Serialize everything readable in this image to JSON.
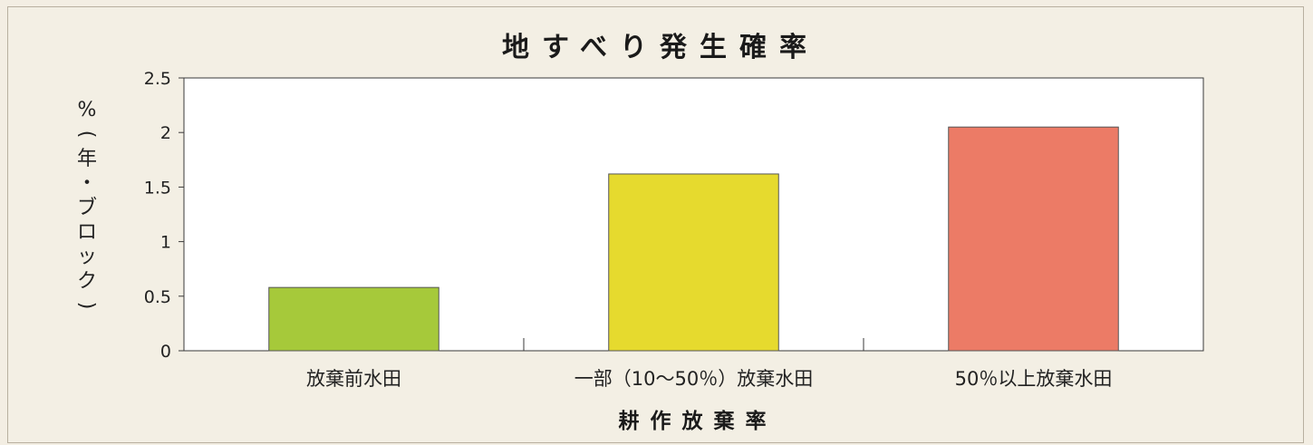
{
  "chart_data": {
    "type": "bar",
    "title": "地すべり発生確率",
    "xlabel": "耕作放棄率",
    "ylabel": "%（年・ブロック）",
    "categories": [
      "放棄前水田",
      "一部（10～50％）放棄水田",
      "50％以上放棄水田"
    ],
    "values": [
      0.58,
      1.62,
      2.05
    ],
    "colors": [
      "#a6c93a",
      "#e6da2e",
      "#ec7b66"
    ],
    "ylim": [
      0,
      2.5
    ],
    "yticks": [
      "0",
      "0.5",
      "1",
      "1.5",
      "2",
      "2.5"
    ],
    "grid": false,
    "legend": "none"
  }
}
